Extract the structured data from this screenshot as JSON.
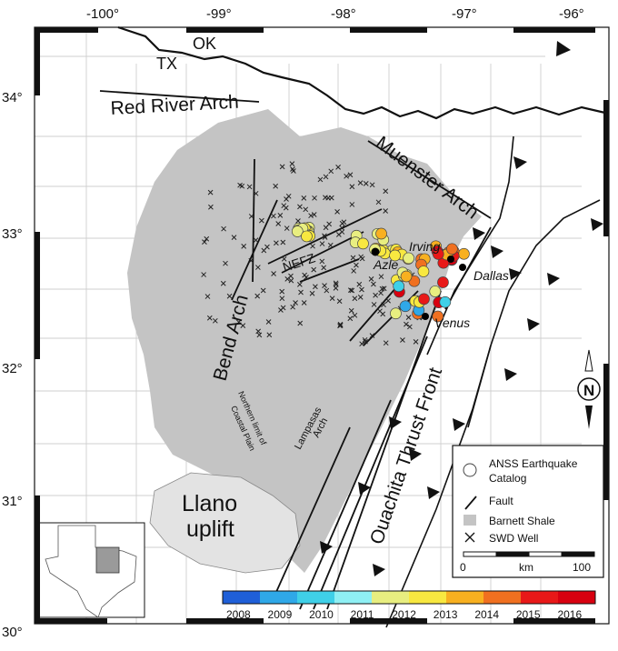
{
  "axes": {
    "lon_ticks": [
      "-100°",
      "-99°",
      "-98°",
      "-97°",
      "-96°"
    ],
    "lat_ticks": [
      "34°",
      "33°",
      "32°",
      "31°",
      "30°"
    ]
  },
  "labels": {
    "state_tx": "TX",
    "state_ok": "OK",
    "red_river_arch": "Red River Arch",
    "muenster_arch": "Muenster Arch",
    "bend_arch": "Bend Arch",
    "nefz": "NEFZ",
    "azle": "Azle",
    "irving": "Irving",
    "dallas": "Dallas",
    "venus": "Venus",
    "lampasas_arch_1": "Lampasas",
    "lampasas_arch_2": "Arch",
    "coastal_plain_1": "Northern limit of",
    "coastal_plain_2": "Coastal Plain",
    "ouachita": "Ouachita Thrust Front",
    "llano_1": "Llano",
    "llano_2": "uplift"
  },
  "compass": {
    "letter": "N"
  },
  "legend": {
    "earthquakes_1": "ANSS Earthquake",
    "earthquakes_2": "Catalog",
    "fault": "Fault",
    "shale": "Barnett Shale",
    "well": "SWD Well",
    "scale_min": "0",
    "scale_unit": "km",
    "scale_max": "100"
  },
  "colorbar": {
    "years": [
      "2008",
      "2009",
      "2010",
      "2011",
      "2012",
      "2013",
      "2014",
      "2015",
      "2016"
    ],
    "colors": [
      "#1f5fd8",
      "#2fa8e8",
      "#3fd0e8",
      "#8ff0f4",
      "#e8ee80",
      "#f8e840",
      "#f8b020",
      "#f07020",
      "#e81818",
      "#d80010"
    ]
  }
}
